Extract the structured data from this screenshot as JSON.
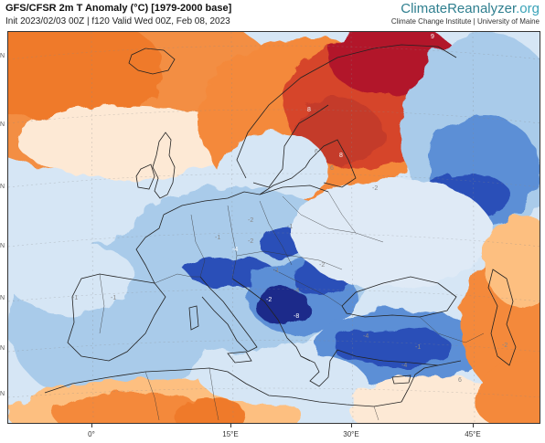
{
  "header": {
    "title": "GFS/CFSR 2m T Anomaly (°C) [1979-2000 base]",
    "subtitle": "Init 2023/02/03 00Z | f120 Valid Wed 00Z, Feb 08, 2023"
  },
  "brand": {
    "name_part1": "ClimateReanalyzer",
    "name_part2": ".org",
    "tagline": "Climate Change Institute | University of Maine"
  },
  "axis": {
    "longitude_labels": [
      "0°",
      "15°E",
      "30°E",
      "45°E"
    ],
    "latitude_ticks": [
      "N",
      "N",
      "N",
      "N",
      "N",
      "N",
      "N"
    ]
  },
  "contour_labels": [
    "9",
    "8",
    "8",
    "6",
    "6",
    "-2",
    "-1",
    "-2",
    "-1",
    "-2",
    "-1",
    "-2",
    "-4",
    "-2",
    "-8",
    "-4",
    "-1",
    "-1",
    "-1",
    "-4",
    "-4",
    "-2",
    "6"
  ],
  "colors": {
    "deep_red": "#b2182b",
    "red": "#d6452b",
    "orange": "#f4893a",
    "light_orange": "#fdbf80",
    "pale": "#fde9d5",
    "white": "#f5f7fb",
    "pale_blue": "#d6e6f5",
    "light_blue": "#a9cbea",
    "blue": "#5b8fd6",
    "deep_blue": "#2c4fb8",
    "navy": "#1a2c8a",
    "coast": "#222222"
  }
}
